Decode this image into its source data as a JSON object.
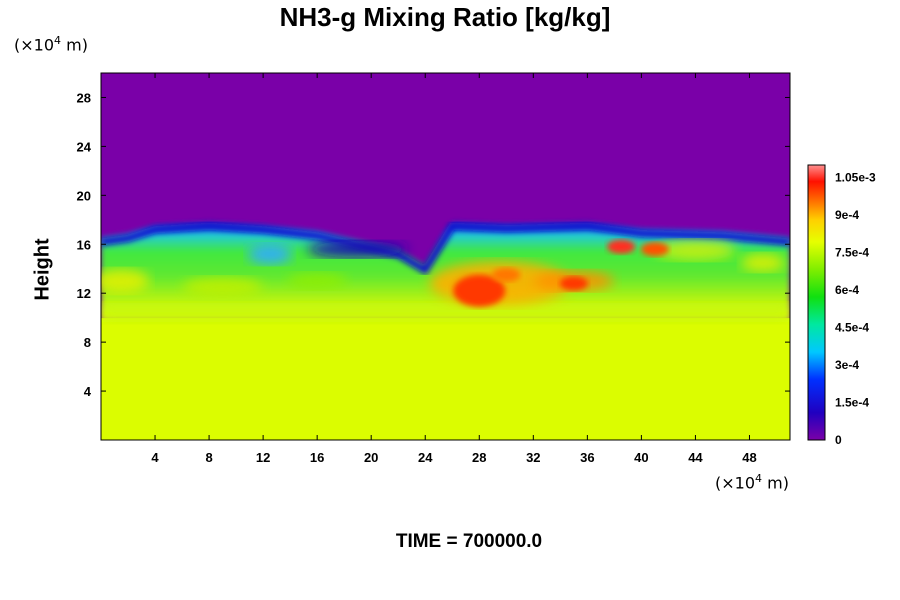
{
  "chart_data": {
    "type": "heatmap",
    "title": "NH3-g Mixing Ratio [kg/kg]",
    "ylabel": "Height",
    "xlabel": "",
    "y_unit": "(×10⁴ m)",
    "x_unit": "(×10⁴ m)",
    "xlim": [
      0,
      51
    ],
    "ylim": [
      0,
      30
    ],
    "x_ticks": [
      "4",
      "8",
      "12",
      "16",
      "20",
      "24",
      "28",
      "32",
      "36",
      "40",
      "44",
      "48"
    ],
    "y_ticks": [
      "4",
      "8",
      "12",
      "16",
      "20",
      "24",
      "28"
    ],
    "colorbar": {
      "range": [
        0,
        0.0011
      ],
      "labels": [
        "0",
        "1.5e-4",
        "3e-4",
        "4.5e-4",
        "6e-4",
        "7.5e-4",
        "9e-4",
        "1.05e-3"
      ]
    },
    "field_description_values": {
      "background_upper": 0,
      "lower_layer": 0.00078,
      "mixing_layer_top_height": [
        16.5,
        16.8,
        17.5,
        17.8,
        17.5,
        17.0,
        16.0,
        15.5,
        14.2,
        17.8,
        17.6,
        17.8,
        17.2,
        17.0,
        16.5
      ],
      "mixing_layer_top_x": [
        0,
        2,
        4,
        8,
        12,
        16,
        20,
        22,
        24,
        26,
        30,
        36,
        40,
        46,
        51
      ],
      "hotspots": [
        {
          "x": 28,
          "y": 12.2,
          "value": 0.001
        },
        {
          "x": 30,
          "y": 13.5,
          "value": 0.00095
        },
        {
          "x": 35,
          "y": 12.8,
          "value": 0.001
        },
        {
          "x": 38.5,
          "y": 15.8,
          "value": 0.00105
        },
        {
          "x": 41,
          "y": 15.6,
          "value": 0.00098
        }
      ]
    }
  },
  "footer": {
    "time_label": "TIME = 700000.0"
  }
}
